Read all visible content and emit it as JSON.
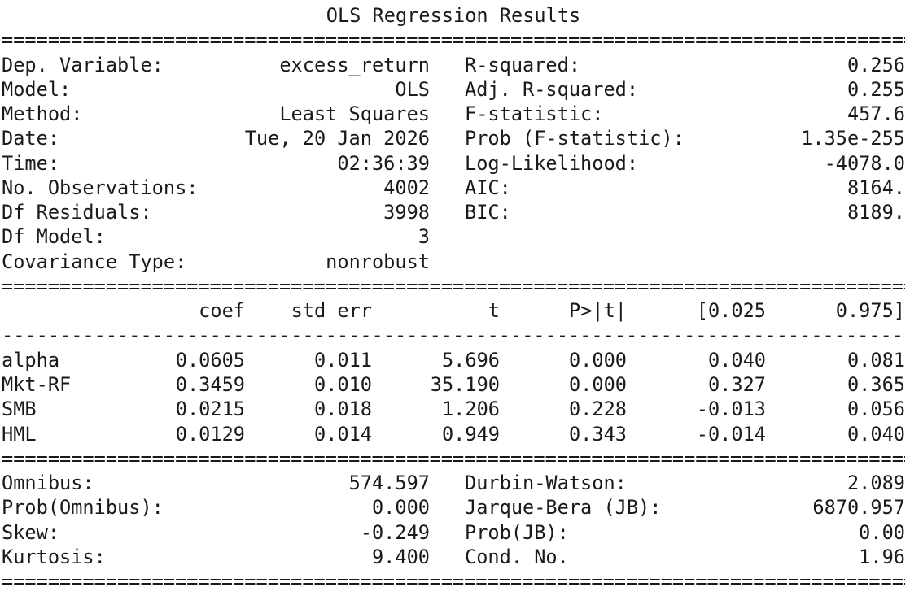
{
  "title": "OLS Regression Results",
  "text_color": "#1a1a1a",
  "info": {
    "rows": [
      {
        "ll": "Dep. Variable:",
        "lv": "excess_return",
        "rl": "R-squared:",
        "rv": "0.256"
      },
      {
        "ll": "Model:",
        "lv": "OLS",
        "rl": "Adj. R-squared:",
        "rv": "0.255"
      },
      {
        "ll": "Method:",
        "lv": "Least Squares",
        "rl": "F-statistic:",
        "rv": "457.6"
      },
      {
        "ll": "Date:",
        "lv": "Tue, 20 Jan 2026",
        "rl": "Prob (F-statistic):",
        "rv": "1.35e-255"
      },
      {
        "ll": "Time:",
        "lv": "02:36:39",
        "rl": "Log-Likelihood:",
        "rv": "-4078.0"
      },
      {
        "ll": "No. Observations:",
        "lv": "4002",
        "rl": "AIC:",
        "rv": "8164."
      },
      {
        "ll": "Df Residuals:",
        "lv": "3998",
        "rl": "BIC:",
        "rv": "8189."
      },
      {
        "ll": "Df Model:",
        "lv": "3",
        "rl": "",
        "rv": ""
      },
      {
        "ll": "Covariance Type:",
        "lv": "nonrobust",
        "rl": "",
        "rv": ""
      }
    ]
  },
  "coef_table": {
    "headers": [
      "coef",
      "std err",
      "t",
      "P>|t|",
      "[0.025",
      "0.975]"
    ],
    "rows": [
      {
        "name": "alpha",
        "coef": "0.0605",
        "std_err": "0.011",
        "t": "5.696",
        "p": "0.000",
        "ci_low": "0.040",
        "ci_high": "0.081"
      },
      {
        "name": "Mkt-RF",
        "coef": "0.3459",
        "std_err": "0.010",
        "t": "35.190",
        "p": "0.000",
        "ci_low": "0.327",
        "ci_high": "0.365"
      },
      {
        "name": "SMB",
        "coef": "0.0215",
        "std_err": "0.018",
        "t": "1.206",
        "p": "0.228",
        "ci_low": "-0.013",
        "ci_high": "0.056"
      },
      {
        "name": "HML",
        "coef": "0.0129",
        "std_err": "0.014",
        "t": "0.949",
        "p": "0.343",
        "ci_low": "-0.014",
        "ci_high": "0.040"
      }
    ]
  },
  "diagnostics": {
    "rows": [
      {
        "ll": "Omnibus:",
        "lv": "574.597",
        "rl": "Durbin-Watson:",
        "rv": "2.089"
      },
      {
        "ll": "Prob(Omnibus):",
        "lv": "0.000",
        "rl": "Jarque-Bera (JB):",
        "rv": "6870.957"
      },
      {
        "ll": "Skew:",
        "lv": "-0.249",
        "rl": "Prob(JB):",
        "rv": "0.00"
      },
      {
        "ll": "Kurtosis:",
        "lv": "9.400",
        "rl": "Cond. No.",
        "rv": "1.96"
      }
    ]
  }
}
